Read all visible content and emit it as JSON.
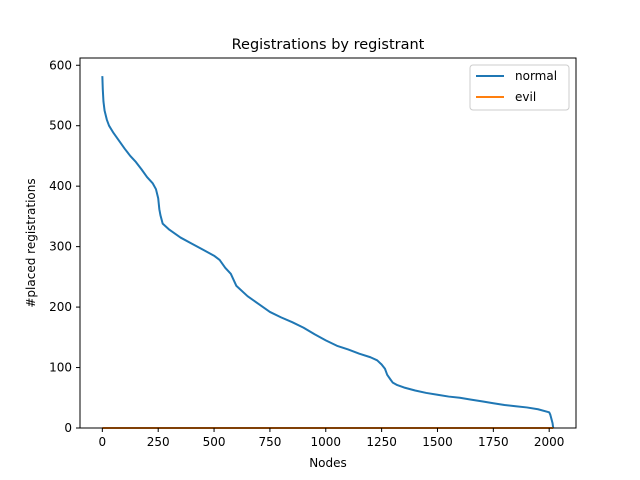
{
  "chart_data": {
    "type": "line",
    "title": "Registrations by registrant",
    "xlabel": "Nodes",
    "ylabel": "#placed registrations",
    "xlim": [
      -100,
      2120
    ],
    "ylim": [
      0,
      612
    ],
    "xticks": [
      0,
      250,
      500,
      750,
      1000,
      1250,
      1500,
      1750,
      2000
    ],
    "yticks": [
      0,
      100,
      200,
      300,
      400,
      500,
      600
    ],
    "grid": false,
    "legend_position": "top-right",
    "series": [
      {
        "name": "normal",
        "color": "#1f77b4",
        "x": [
          0,
          2,
          5,
          10,
          20,
          30,
          50,
          75,
          100,
          125,
          150,
          175,
          200,
          225,
          240,
          250,
          255,
          260,
          265,
          270,
          300,
          350,
          400,
          450,
          500,
          525,
          550,
          575,
          600,
          650,
          700,
          750,
          800,
          850,
          900,
          950,
          1000,
          1050,
          1100,
          1150,
          1200,
          1230,
          1250,
          1265,
          1275,
          1290,
          1300,
          1320,
          1350,
          1400,
          1450,
          1500,
          1550,
          1600,
          1650,
          1700,
          1750,
          1800,
          1850,
          1900,
          1950,
          2000,
          2005,
          2010,
          2015,
          2018
        ],
        "values": [
          582,
          560,
          540,
          525,
          510,
          500,
          488,
          475,
          462,
          450,
          440,
          428,
          415,
          405,
          395,
          380,
          362,
          352,
          345,
          338,
          328,
          315,
          305,
          295,
          285,
          278,
          265,
          255,
          235,
          218,
          205,
          192,
          183,
          175,
          166,
          155,
          145,
          136,
          130,
          123,
          117,
          112,
          105,
          98,
          88,
          80,
          75,
          71,
          67,
          62,
          58,
          55,
          52,
          50,
          47,
          44,
          41,
          38,
          36,
          34,
          31,
          26,
          22,
          15,
          8,
          0
        ]
      },
      {
        "name": "evil",
        "color": "#ff7f0e",
        "x": [
          0,
          2018
        ],
        "values": [
          0,
          0
        ]
      }
    ]
  }
}
